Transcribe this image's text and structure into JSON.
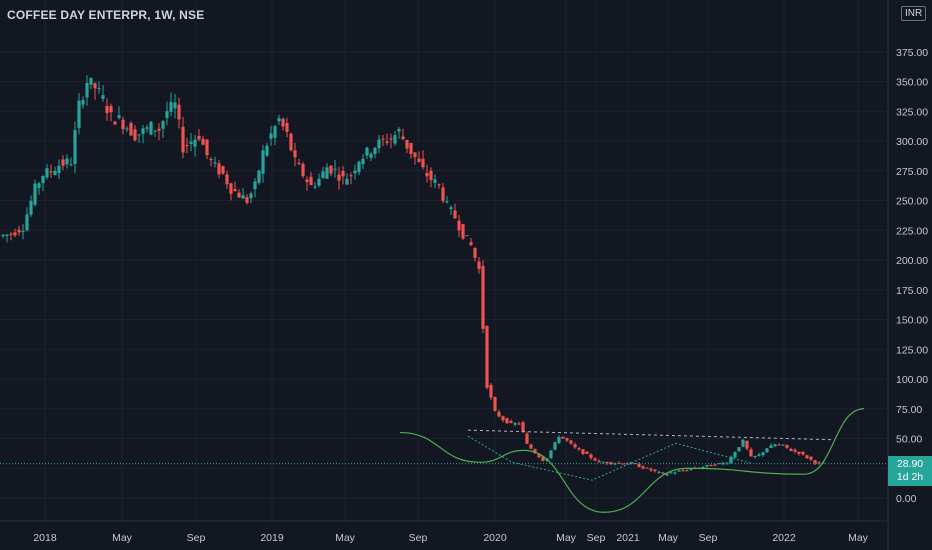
{
  "header": {
    "title": "COFFEE DAY ENTERPR, 1W, NSE",
    "currency": "INR"
  },
  "price_tag": {
    "price": "28.90",
    "countdown": "1d 2h"
  },
  "colors": {
    "background": "#131722",
    "up": "#26a69a",
    "down": "#ef5350",
    "drawing": "#4caf50",
    "dashed_line": "#b2b5be",
    "dotted_line": "#26a69a"
  },
  "chart_data": {
    "type": "candlestick",
    "title": "COFFEE DAY ENTERPR, 1W, NSE",
    "y_axis_side": "right",
    "ylim": [
      -15,
      410
    ],
    "y_ticks": [
      "375.00",
      "350.00",
      "325.00",
      "300.00",
      "275.00",
      "250.00",
      "225.00",
      "200.00",
      "175.00",
      "150.00",
      "125.00",
      "100.00",
      "75.00",
      "50.00",
      "25.00",
      "0.00"
    ],
    "x_ticks": [
      "2018",
      "May",
      "Sep",
      "2019",
      "May",
      "Sep",
      "2020",
      "May",
      "Sep",
      "2021",
      "May",
      "Sep",
      "2022",
      "May"
    ],
    "last_price": 28.9,
    "price_path_approx": [
      [
        0,
        220
      ],
      [
        6,
        222
      ],
      [
        12,
        228
      ],
      [
        18,
        260
      ],
      [
        22,
        272
      ],
      [
        26,
        275
      ],
      [
        30,
        280
      ],
      [
        36,
        283
      ],
      [
        40,
        330
      ],
      [
        44,
        350
      ],
      [
        48,
        345
      ],
      [
        52,
        335
      ],
      [
        56,
        320
      ],
      [
        60,
        318
      ],
      [
        64,
        312
      ],
      [
        68,
        305
      ],
      [
        72,
        308
      ],
      [
        76,
        312
      ],
      [
        80,
        310
      ],
      [
        84,
        325
      ],
      [
        88,
        330
      ],
      [
        92,
        295
      ],
      [
        96,
        300
      ],
      [
        100,
        305
      ],
      [
        104,
        288
      ],
      [
        108,
        278
      ],
      [
        112,
        272
      ],
      [
        116,
        260
      ],
      [
        120,
        255
      ],
      [
        124,
        250
      ],
      [
        128,
        262
      ],
      [
        132,
        290
      ],
      [
        136,
        305
      ],
      [
        140,
        318
      ],
      [
        144,
        305
      ],
      [
        148,
        282
      ],
      [
        152,
        272
      ],
      [
        156,
        262
      ],
      [
        160,
        268
      ],
      [
        164,
        278
      ],
      [
        168,
        275
      ],
      [
        172,
        268
      ],
      [
        176,
        272
      ],
      [
        180,
        285
      ],
      [
        184,
        290
      ],
      [
        188,
        296
      ],
      [
        192,
        300
      ],
      [
        196,
        302
      ],
      [
        200,
        308
      ],
      [
        204,
        296
      ],
      [
        208,
        286
      ],
      [
        212,
        275
      ],
      [
        216,
        268
      ],
      [
        220,
        262
      ],
      [
        224,
        245
      ],
      [
        228,
        236
      ],
      [
        232,
        222
      ],
      [
        236,
        212
      ],
      [
        240,
        192
      ],
      [
        244,
        95
      ],
      [
        248,
        72
      ],
      [
        252,
        66
      ],
      [
        256,
        62
      ],
      [
        260,
        63
      ],
      [
        262,
        55
      ],
      [
        264,
        45
      ],
      [
        268,
        38
      ],
      [
        272,
        32
      ],
      [
        274,
        34
      ],
      [
        276,
        40
      ],
      [
        280,
        52
      ],
      [
        284,
        48
      ],
      [
        288,
        42
      ],
      [
        292,
        38
      ],
      [
        296,
        34
      ],
      [
        300,
        30
      ],
      [
        316,
        29
      ],
      [
        332,
        20
      ],
      [
        348,
        25
      ],
      [
        364,
        30
      ],
      [
        372,
        48
      ],
      [
        376,
        34
      ],
      [
        380,
        36
      ],
      [
        384,
        42
      ],
      [
        388,
        45
      ],
      [
        392,
        44
      ],
      [
        396,
        40
      ],
      [
        400,
        38
      ],
      [
        404,
        34
      ],
      [
        408,
        30
      ],
      [
        410,
        28.9
      ]
    ],
    "drawings": [
      {
        "kind": "resistance-line",
        "style": "dashed",
        "from": [
          268,
          57
        ],
        "to": [
          475,
          49
        ]
      },
      {
        "kind": "zigzag-pattern",
        "style": "dotted",
        "points": [
          [
            268,
            52
          ],
          [
            290,
            30
          ],
          [
            330,
            15
          ],
          [
            372,
            46
          ],
          [
            410,
            29
          ]
        ]
      },
      {
        "kind": "curve-pattern",
        "style": "solid",
        "points": [
          [
            228,
            55
          ],
          [
            268,
            30
          ],
          [
            290,
            40
          ],
          [
            330,
            -12
          ],
          [
            372,
            25
          ],
          [
            430,
            20
          ],
          [
            460,
            75
          ]
        ]
      }
    ]
  }
}
